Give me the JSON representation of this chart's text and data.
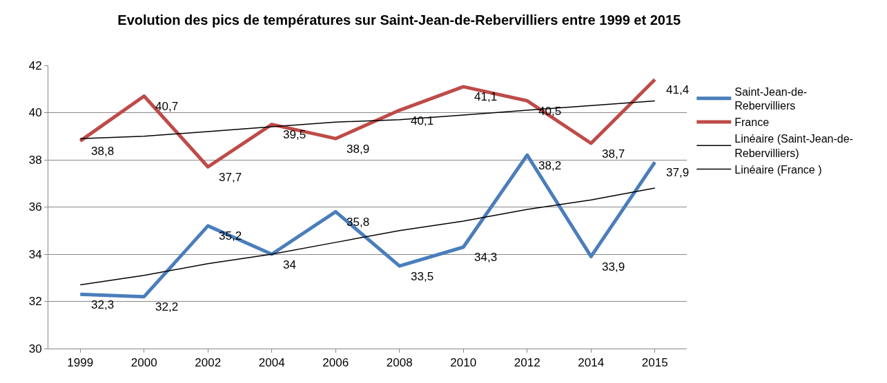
{
  "chart_data": {
    "type": "line",
    "title": "Evolution des pics de températures sur Saint-Jean-de-Rebervilliers entre 1999 et 2015",
    "categories": [
      "1999",
      "2000",
      "2002",
      "2004",
      "2006",
      "2008",
      "2010",
      "2012",
      "2014",
      "2015"
    ],
    "series": [
      {
        "name": "Saint-Jean-de-Rebervilliers",
        "color": "#4a7ebb",
        "values": [
          32.3,
          32.2,
          35.2,
          34,
          35.8,
          33.5,
          34.3,
          38.2,
          33.9,
          37.9
        ],
        "value_labels": [
          "32,3",
          "32,2",
          "35,2",
          "34",
          "35,8",
          "33,5",
          "34,3",
          "38,2",
          "33,9",
          "37,9"
        ]
      },
      {
        "name": "France",
        "color": "#be4b48",
        "values": [
          38.8,
          40.7,
          37.7,
          39.5,
          38.9,
          40.1,
          41.1,
          40.5,
          38.7,
          41.4
        ],
        "value_labels": [
          "38,8",
          "40,7",
          "37,7",
          "39,5",
          "38,9",
          "40,1",
          "41,1",
          "40,5",
          "38,7",
          "41,4"
        ]
      },
      {
        "name": "Linéaire (Saint-Jean-de-Rebervilliers)",
        "color": "#000000",
        "values": [
          32.7,
          33.1,
          33.6,
          34.0,
          34.5,
          35.0,
          35.4,
          35.9,
          36.3,
          36.8
        ]
      },
      {
        "name": "Linéaire (France )",
        "color": "#000000",
        "values": [
          38.9,
          39.0,
          39.2,
          39.4,
          39.6,
          39.7,
          39.9,
          40.1,
          40.3,
          40.5
        ]
      }
    ],
    "ylim": [
      30,
      42
    ],
    "yticks": [
      30,
      32,
      34,
      36,
      38,
      40,
      42
    ],
    "grid": "y",
    "legend": "right",
    "marker": "none"
  }
}
